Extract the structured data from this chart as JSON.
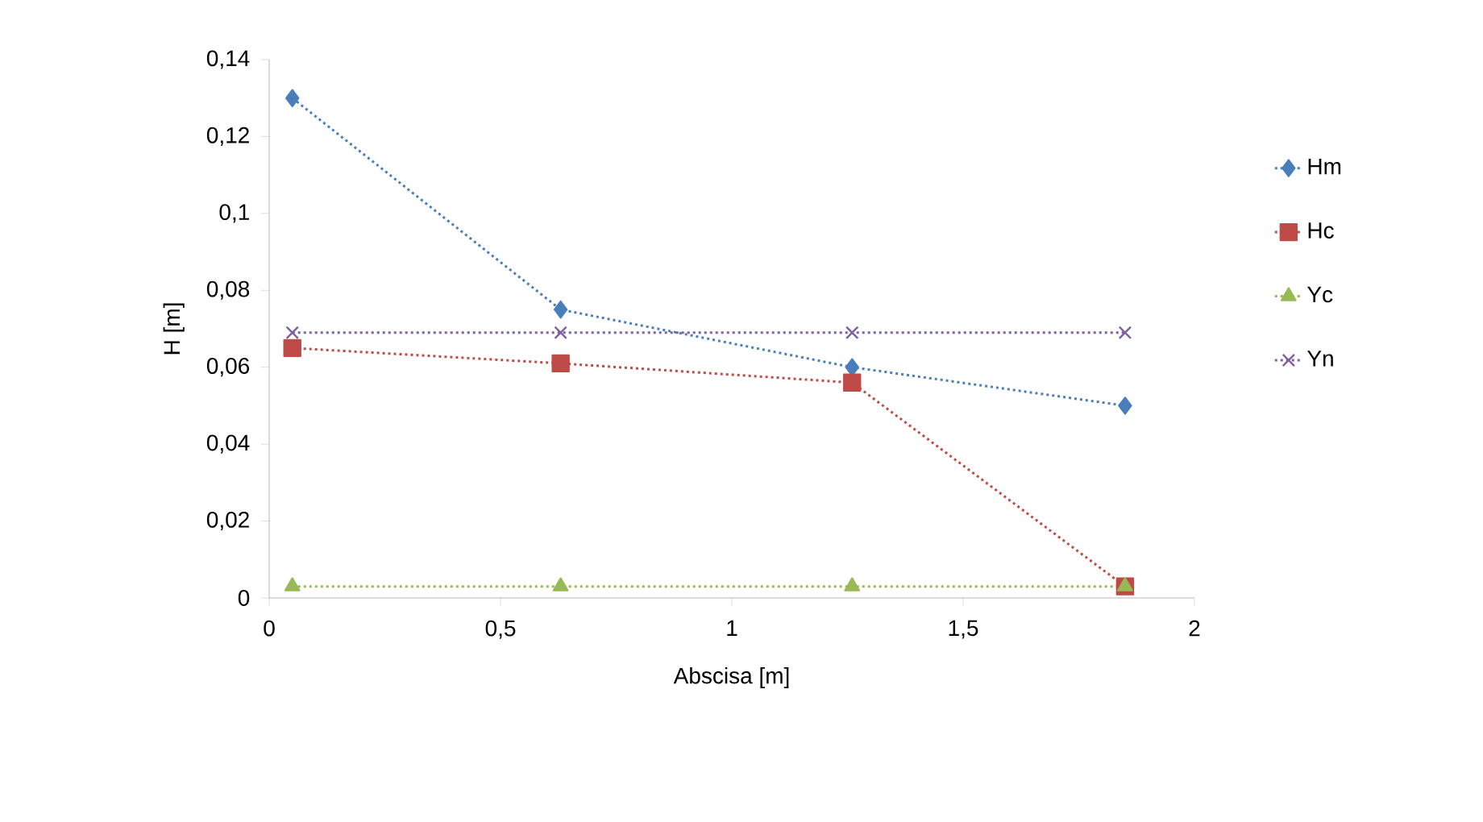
{
  "chart_data": {
    "type": "line",
    "xlabel": "Abscisa [m]",
    "ylabel": "H [m]",
    "x": [
      0.05,
      0.63,
      1.26,
      1.85
    ],
    "series": [
      {
        "name": "Hm",
        "color": "#4a7ebb",
        "marker": "diamond",
        "values": [
          0.13,
          0.075,
          0.06,
          0.05
        ]
      },
      {
        "name": "Hc",
        "color": "#be4b48",
        "marker": "square",
        "values": [
          0.065,
          0.061,
          0.056,
          0.003
        ]
      },
      {
        "name": "Yc",
        "color": "#98b954",
        "marker": "triangle",
        "values": [
          0.003,
          0.003,
          0.003,
          0.003
        ]
      },
      {
        "name": "Yn",
        "color": "#7d60a0",
        "marker": "cross",
        "values": [
          0.069,
          0.069,
          0.069,
          0.069
        ]
      }
    ],
    "xlim": [
      0,
      2
    ],
    "ylim": [
      0,
      0.14
    ],
    "xticks": [
      0,
      {
        "value": 0.5,
        "label": "0,5"
      },
      1,
      {
        "value": 1.5,
        "label": "1,5"
      },
      2
    ],
    "yticks": [
      0,
      {
        "value": 0.02,
        "label": "0,02"
      },
      {
        "value": 0.04,
        "label": "0,04"
      },
      {
        "value": 0.06,
        "label": "0,06"
      },
      {
        "value": 0.08,
        "label": "0,08"
      },
      {
        "value": 0.1,
        "label": "0,1"
      },
      {
        "value": 0.12,
        "label": "0,12"
      },
      {
        "value": 0.14,
        "label": "0,14"
      }
    ],
    "grid": false,
    "legend": "right",
    "line_style": "dotted"
  }
}
